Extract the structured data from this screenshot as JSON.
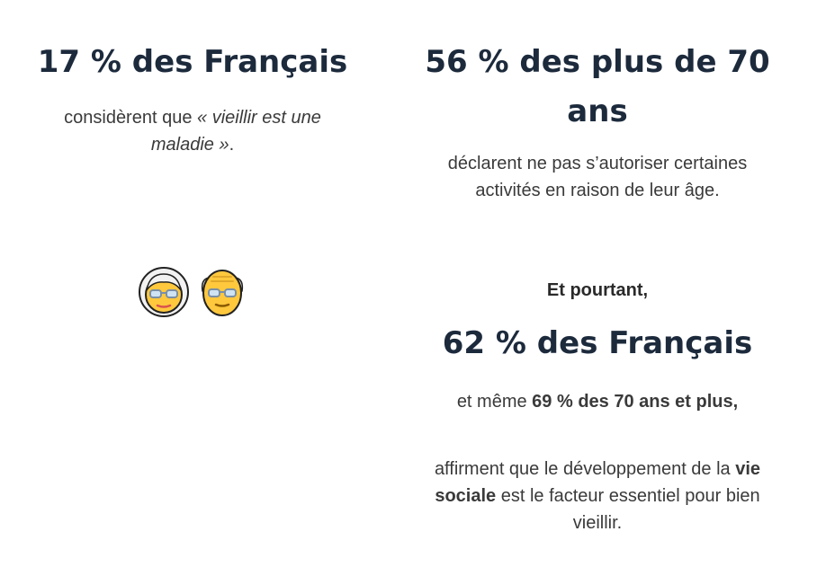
{
  "left": {
    "stat": "17 % des Français",
    "desc_pre": "considèrent que ",
    "desc_quote": "« vieillir est une maladie »",
    "desc_post": ".",
    "emojis": [
      "old-woman-emoji",
      "old-man-emoji"
    ]
  },
  "right": {
    "stat": "56 % des plus de 70 ans",
    "desc": "déclarent ne pas s’autoriser certaines activités en raison de leur âge.",
    "intro": "Et pourtant,",
    "stat2": "62 % des Français",
    "line_pre": "et même ",
    "line_bold": "69 % des 70 ans et plus,",
    "final_pre": "affirment que le développement de la ",
    "final_bold": "vie sociale",
    "final_post": " est le facteur essentiel pour bien vieillir."
  },
  "colors": {
    "heading": "#1c2a3c",
    "text": "#3a3a3a",
    "skin": "#ffc83d",
    "hair": "#f2f2f2"
  }
}
